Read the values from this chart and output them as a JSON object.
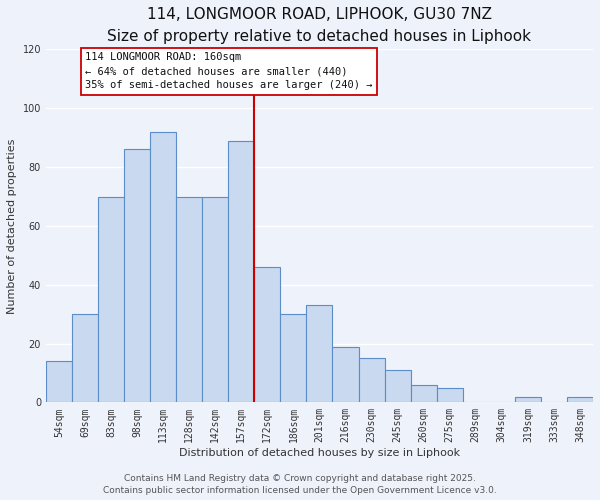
{
  "title": "114, LONGMOOR ROAD, LIPHOOK, GU30 7NZ",
  "subtitle": "Size of property relative to detached houses in Liphook",
  "xlabel": "Distribution of detached houses by size in Liphook",
  "ylabel": "Number of detached properties",
  "categories": [
    "54sqm",
    "69sqm",
    "83sqm",
    "98sqm",
    "113sqm",
    "128sqm",
    "142sqm",
    "157sqm",
    "172sqm",
    "186sqm",
    "201sqm",
    "216sqm",
    "230sqm",
    "245sqm",
    "260sqm",
    "275sqm",
    "289sqm",
    "304sqm",
    "319sqm",
    "333sqm",
    "348sqm"
  ],
  "values": [
    14,
    30,
    70,
    86,
    92,
    70,
    70,
    89,
    46,
    30,
    33,
    19,
    15,
    11,
    6,
    5,
    0,
    0,
    2,
    0,
    2
  ],
  "bar_color": "#c9d9f0",
  "bar_edge_color": "#5b8dc8",
  "vline_color": "#cc0000",
  "ylim": [
    0,
    120
  ],
  "yticks": [
    0,
    20,
    40,
    60,
    80,
    100,
    120
  ],
  "annotation_title": "114 LONGMOOR ROAD: 160sqm",
  "annotation_line1": "← 64% of detached houses are smaller (440)",
  "annotation_line2": "35% of semi-detached houses are larger (240) →",
  "annotation_box_color": "#ffffff",
  "annotation_box_edge": "#cc0000",
  "footer1": "Contains HM Land Registry data © Crown copyright and database right 2025.",
  "footer2": "Contains public sector information licensed under the Open Government Licence v3.0.",
  "background_color": "#eef2fb",
  "grid_color": "#ffffff",
  "title_fontsize": 11,
  "subtitle_fontsize": 9,
  "axis_label_fontsize": 8,
  "tick_fontsize": 7,
  "annotation_fontsize": 7.5,
  "footer_fontsize": 6.5
}
